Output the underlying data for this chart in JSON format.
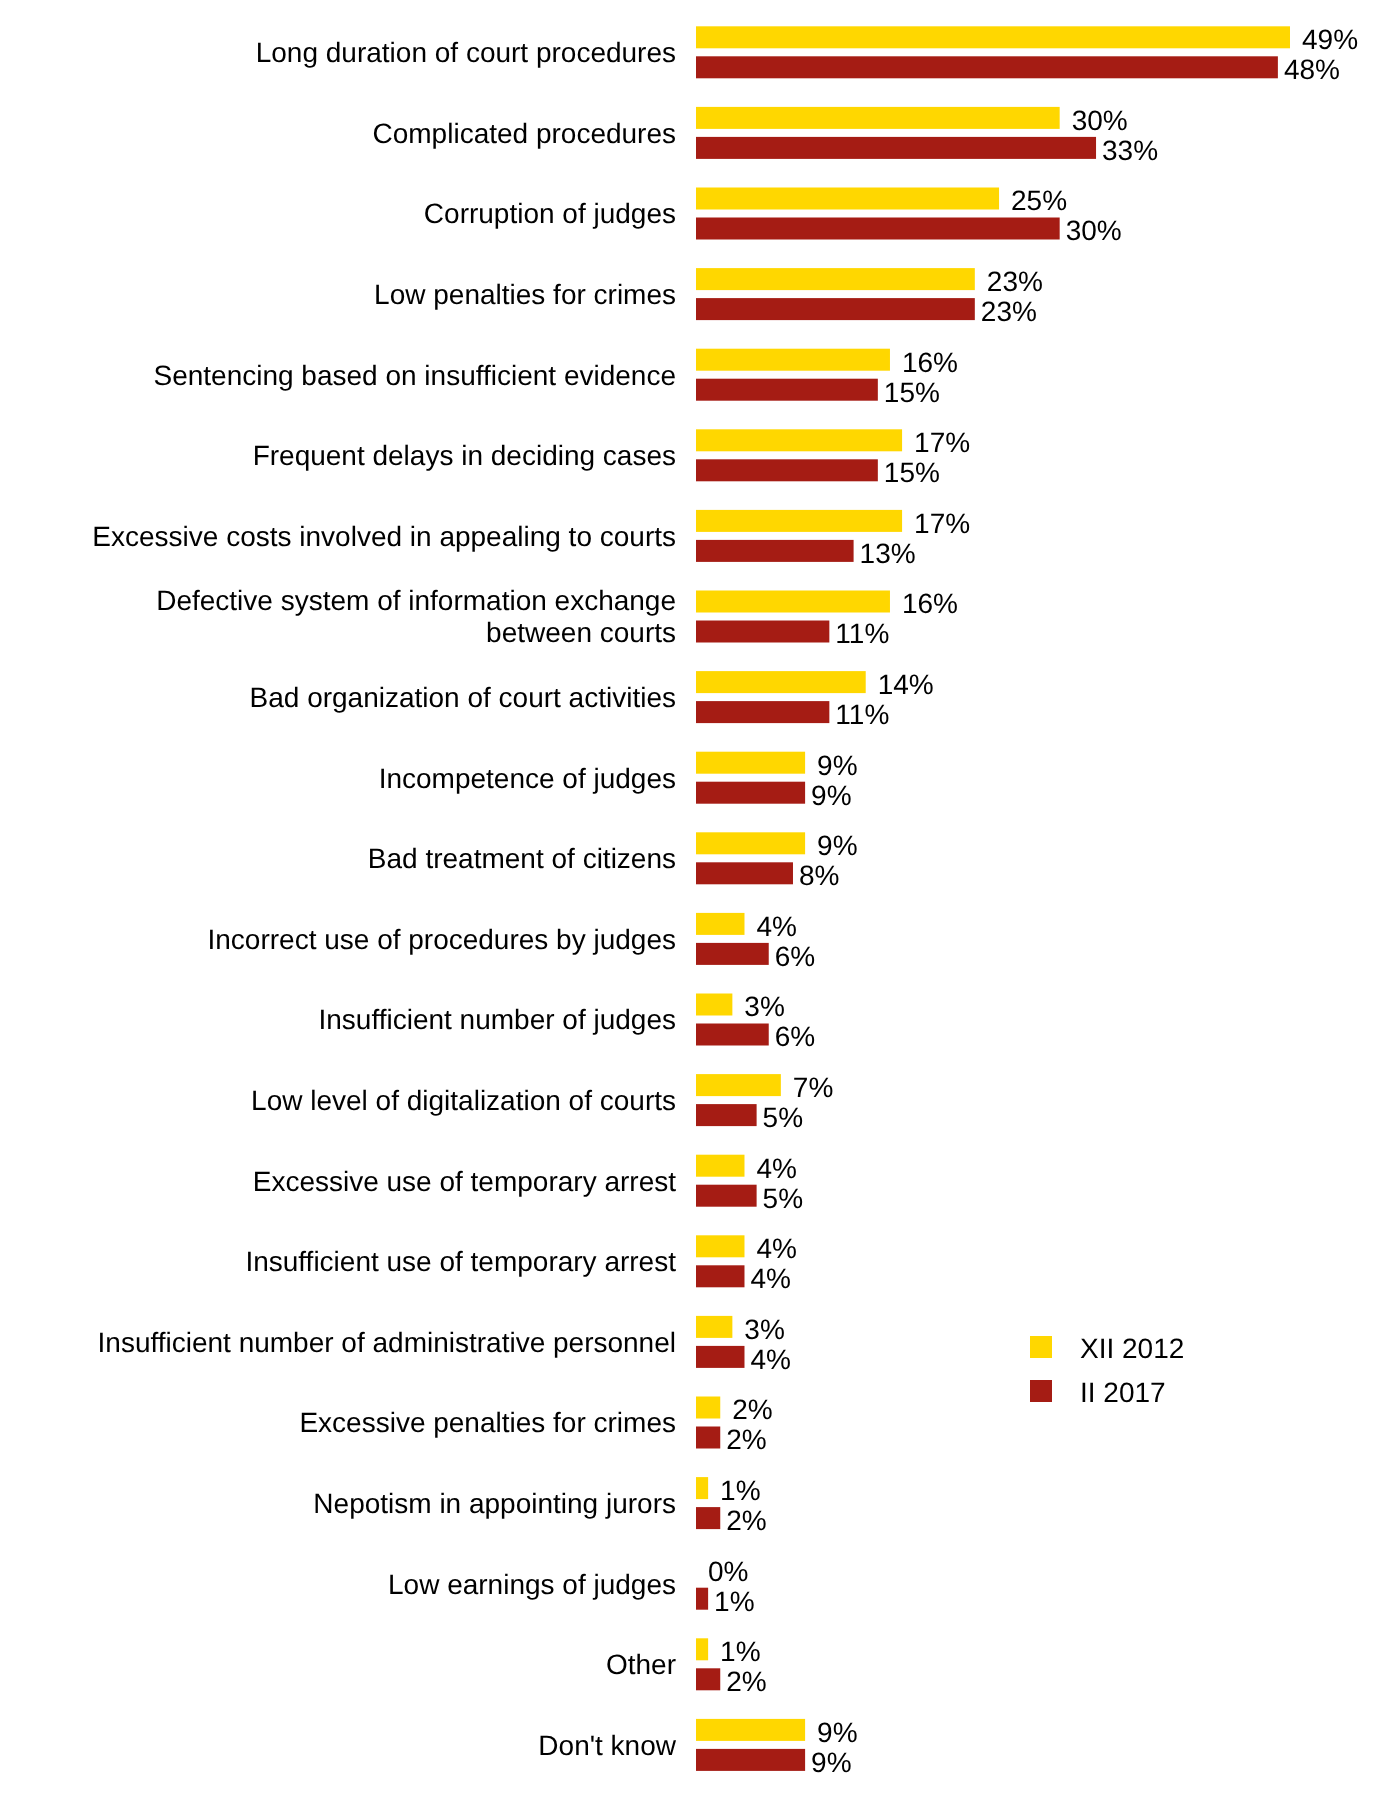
{
  "chart_data": {
    "type": "bar",
    "orientation": "horizontal",
    "legend": "right",
    "categories": [
      "Long duration of court procedures",
      "Complicated procedures",
      "Corruption of judges",
      "Low penalties for crimes",
      "Sentencing based on insufficient evidence",
      "Frequent delays in deciding cases",
      "Excessive costs involved in appealing to courts",
      "Defective system of information exchange between courts",
      "Bad organization of court activities",
      "Incompetence of judges",
      "Bad treatment of citizens",
      "Incorrect use of procedures by judges",
      "Insufficient number of judges",
      "Low level of digitalization of courts",
      "Excessive use of temporary arrest",
      "Insufficient use of temporary arrest",
      "Insufficient number of administrative personnel",
      "Excessive penalties for crimes",
      "Nepotism in appointing jurors",
      "Low earnings of judges",
      "Other",
      "Don't know"
    ],
    "series": [
      {
        "name": "XII 2012",
        "color": "#ffd700",
        "values": [
          49,
          30,
          25,
          23,
          16,
          17,
          17,
          16,
          14,
          9,
          9,
          4,
          3,
          7,
          4,
          4,
          3,
          2,
          1,
          0,
          1,
          9
        ],
        "value_labels": [
          "49%",
          "30%",
          "25%",
          "23%",
          "16%",
          "17%",
          "17%",
          "16%",
          "14%",
          "9%",
          "9%",
          "4%",
          "3%",
          "7%",
          "4%",
          "4%",
          "3%",
          "2%",
          "1%",
          "0%",
          "1%",
          "9%"
        ]
      },
      {
        "name": "II 2017",
        "color": "#a51c14",
        "values": [
          48,
          33,
          30,
          23,
          15,
          15,
          13,
          11,
          11,
          9,
          8,
          6,
          6,
          5,
          5,
          4,
          4,
          2,
          2,
          1,
          2,
          9
        ],
        "value_labels": [
          "48%",
          "33%",
          "30%",
          "23%",
          "15%",
          "15%",
          "13%",
          "11%",
          "11%",
          "9%",
          "8%",
          "6%",
          "6%",
          "5%",
          "5%",
          "4%",
          "4%",
          "2%",
          "2%",
          "1%",
          "2%",
          "9%"
        ]
      }
    ]
  }
}
